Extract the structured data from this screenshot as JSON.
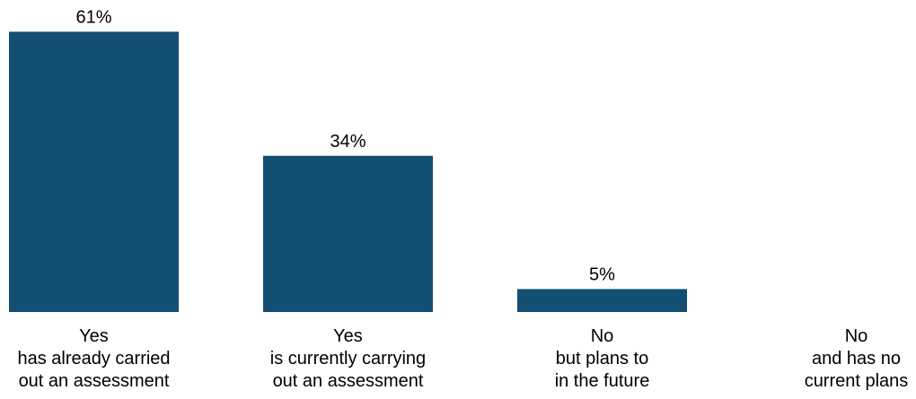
{
  "chart_data": {
    "type": "bar",
    "categories": [
      [
        "Yes",
        "has already carried",
        "out an assessment"
      ],
      [
        "Yes",
        "is currently carrying",
        "out an assessment"
      ],
      [
        "No",
        "but plans to",
        "in the future"
      ],
      [
        "No",
        "and has no",
        "current plans"
      ]
    ],
    "values": [
      61,
      34,
      5,
      0
    ],
    "value_labels": [
      "61%",
      "34%",
      "5%",
      ""
    ],
    "unit": "%",
    "bar_color": "#134f73",
    "title": "",
    "xlabel": "",
    "ylabel": "",
    "grid": false,
    "legend": "none"
  }
}
